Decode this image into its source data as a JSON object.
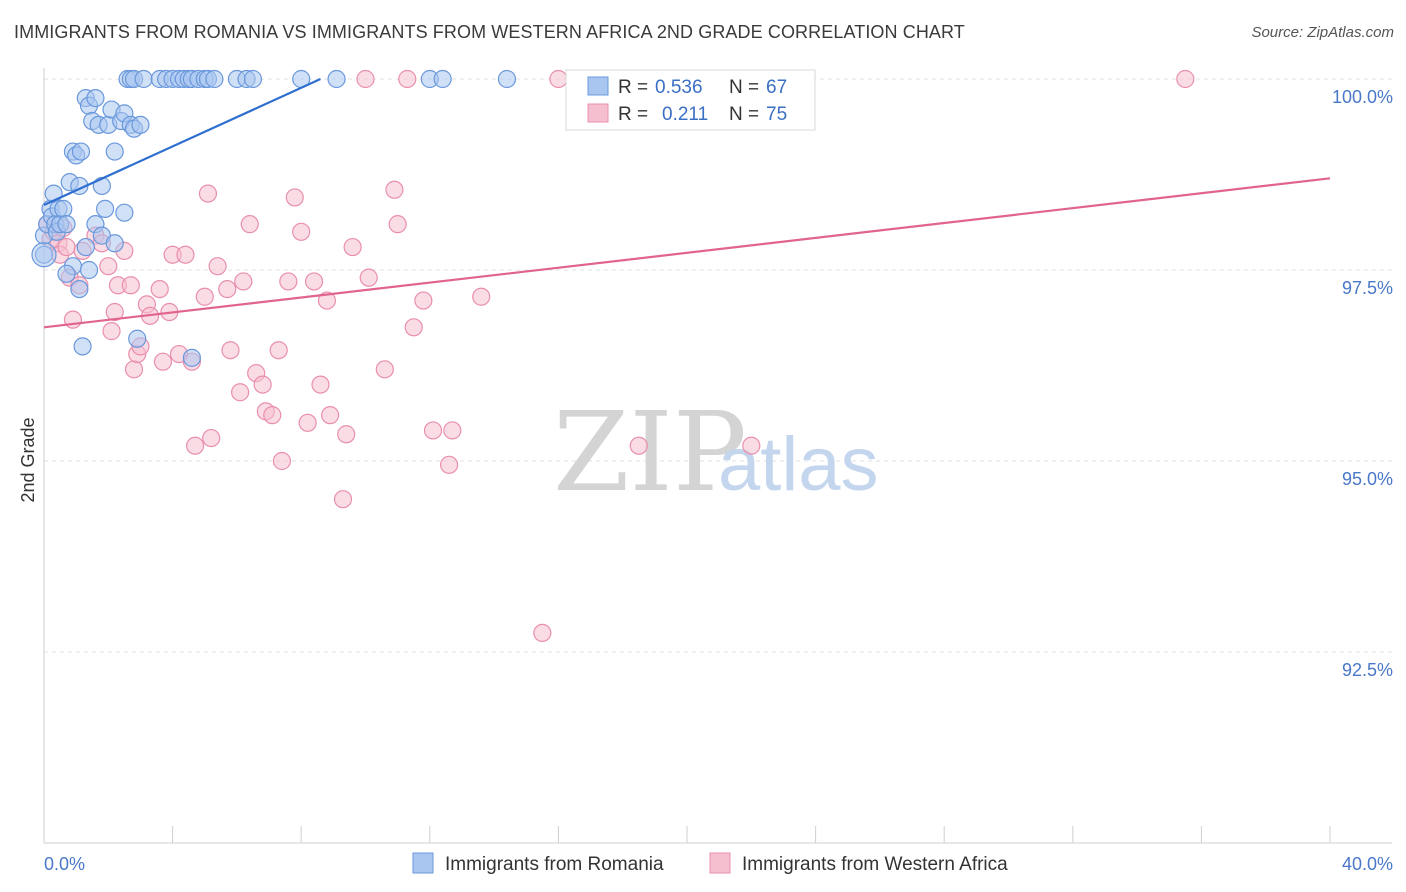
{
  "title": "IMMIGRANTS FROM ROMANIA VS IMMIGRANTS FROM WESTERN AFRICA 2ND GRADE CORRELATION CHART",
  "source": "Source: ZipAtlas.com",
  "colors": {
    "blue_fill": "#a9c6f0",
    "blue_stroke": "#6a98dc",
    "blue_line": "#2f6fcf",
    "pink_fill": "#f6bfd0",
    "pink_stroke": "#e98fae",
    "pink_line": "#e0648e",
    "tick_text": "#4a78c8",
    "grid": "#e2e2e2"
  },
  "legend": {
    "series": [
      {
        "r_label": "R =",
        "r_value": "0.536",
        "n_label": "N =",
        "n_value": "67"
      },
      {
        "r_label": "R =",
        "r_value": "0.211",
        "n_label": "N =",
        "n_value": "75"
      }
    ]
  },
  "watermark": {
    "zip": "ZIP",
    "atlas": "atlas"
  },
  "chart_data": {
    "type": "scatter",
    "title": "IMMIGRANTS FROM ROMANIA VS IMMIGRANTS FROM WESTERN AFRICA 2ND GRADE CORRELATION CHART",
    "xlabel": "",
    "ylabel": "2nd Grade",
    "xlim": [
      0,
      40
    ],
    "ylim": [
      90.0,
      100.5
    ],
    "x_tick_labels": [
      "0.0%",
      "40.0%"
    ],
    "y_ticks": [
      92.5,
      95.0,
      97.5,
      100.0
    ],
    "y_tick_labels": [
      "92.5%",
      "95.0%",
      "97.5%",
      "100.0%"
    ],
    "grid": true,
    "legend_position": "top-center",
    "series": [
      {
        "name": "Immigrants from Romania",
        "r": 0.536,
        "n": 67,
        "trend": {
          "x": [
            0.0,
            8.6
          ],
          "y": [
            98.35,
            100.0
          ]
        },
        "points": [
          [
            0.0,
            97.7
          ],
          [
            0.0,
            97.95
          ],
          [
            0.1,
            98.1
          ],
          [
            0.2,
            98.3
          ],
          [
            0.25,
            98.2
          ],
          [
            0.3,
            98.5
          ],
          [
            0.35,
            98.1
          ],
          [
            0.4,
            98.0
          ],
          [
            0.45,
            98.3
          ],
          [
            0.5,
            98.1
          ],
          [
            0.6,
            98.3
          ],
          [
            0.7,
            98.1
          ],
          [
            0.8,
            98.65
          ],
          [
            0.9,
            99.05
          ],
          [
            1.0,
            99.0
          ],
          [
            1.1,
            98.6
          ],
          [
            1.15,
            99.05
          ],
          [
            1.3,
            99.75
          ],
          [
            1.4,
            99.65
          ],
          [
            1.5,
            99.45
          ],
          [
            1.6,
            99.75
          ],
          [
            1.7,
            99.4
          ],
          [
            1.8,
            98.6
          ],
          [
            1.9,
            98.3
          ],
          [
            2.0,
            99.4
          ],
          [
            2.1,
            99.6
          ],
          [
            2.2,
            99.05
          ],
          [
            2.4,
            99.45
          ],
          [
            2.5,
            99.55
          ],
          [
            2.7,
            99.4
          ],
          [
            2.8,
            99.35
          ],
          [
            3.0,
            99.4
          ],
          [
            2.5,
            98.25
          ],
          [
            1.3,
            97.8
          ],
          [
            1.6,
            98.1
          ],
          [
            1.8,
            97.95
          ],
          [
            2.2,
            97.85
          ],
          [
            0.9,
            97.55
          ],
          [
            1.1,
            97.25
          ],
          [
            1.4,
            97.5
          ],
          [
            0.7,
            97.45
          ],
          [
            1.2,
            96.5
          ],
          [
            2.9,
            96.6
          ],
          [
            4.6,
            96.35
          ],
          [
            2.6,
            100.0
          ],
          [
            2.7,
            100.0
          ],
          [
            2.8,
            100.0
          ],
          [
            3.1,
            100.0
          ],
          [
            3.6,
            100.0
          ],
          [
            3.8,
            100.0
          ],
          [
            4.0,
            100.0
          ],
          [
            4.2,
            100.0
          ],
          [
            4.35,
            100.0
          ],
          [
            4.5,
            100.0
          ],
          [
            4.6,
            100.0
          ],
          [
            4.8,
            100.0
          ],
          [
            5.0,
            100.0
          ],
          [
            5.1,
            100.0
          ],
          [
            5.3,
            100.0
          ],
          [
            6.0,
            100.0
          ],
          [
            6.3,
            100.0
          ],
          [
            6.5,
            100.0
          ],
          [
            8.0,
            100.0
          ],
          [
            9.1,
            100.0
          ],
          [
            12.0,
            100.0
          ],
          [
            12.4,
            100.0
          ],
          [
            14.4,
            100.0
          ]
        ]
      },
      {
        "name": "Immigrants from Western Africa",
        "r": 0.211,
        "n": 75,
        "trend": {
          "x": [
            0.0,
            40.0
          ],
          "y": [
            96.75,
            98.7
          ]
        },
        "points": [
          [
            0.1,
            98.1
          ],
          [
            0.2,
            97.9
          ],
          [
            0.3,
            98.0
          ],
          [
            0.45,
            97.85
          ],
          [
            0.5,
            97.7
          ],
          [
            0.6,
            98.05
          ],
          [
            0.7,
            97.8
          ],
          [
            0.8,
            97.4
          ],
          [
            0.9,
            96.85
          ],
          [
            1.1,
            97.3
          ],
          [
            1.2,
            97.75
          ],
          [
            1.6,
            97.95
          ],
          [
            1.8,
            97.85
          ],
          [
            2.0,
            97.55
          ],
          [
            2.1,
            96.7
          ],
          [
            2.2,
            96.95
          ],
          [
            2.3,
            97.3
          ],
          [
            2.5,
            97.75
          ],
          [
            2.7,
            97.3
          ],
          [
            2.8,
            96.2
          ],
          [
            2.9,
            96.4
          ],
          [
            3.0,
            96.5
          ],
          [
            3.2,
            97.05
          ],
          [
            3.3,
            96.9
          ],
          [
            3.6,
            97.25
          ],
          [
            3.7,
            96.3
          ],
          [
            3.9,
            96.95
          ],
          [
            4.0,
            97.7
          ],
          [
            4.2,
            96.4
          ],
          [
            4.4,
            97.7
          ],
          [
            4.6,
            96.3
          ],
          [
            4.7,
            95.2
          ],
          [
            5.0,
            97.15
          ],
          [
            5.1,
            98.5
          ],
          [
            5.2,
            95.3
          ],
          [
            5.4,
            97.55
          ],
          [
            5.7,
            97.25
          ],
          [
            5.8,
            96.45
          ],
          [
            6.1,
            95.9
          ],
          [
            6.2,
            97.35
          ],
          [
            6.4,
            98.1
          ],
          [
            6.6,
            96.15
          ],
          [
            6.8,
            96.0
          ],
          [
            6.9,
            95.65
          ],
          [
            7.1,
            95.6
          ],
          [
            7.3,
            96.45
          ],
          [
            7.4,
            95.0
          ],
          [
            7.6,
            97.35
          ],
          [
            7.8,
            98.45
          ],
          [
            8.0,
            98.0
          ],
          [
            8.2,
            95.5
          ],
          [
            8.4,
            97.35
          ],
          [
            8.6,
            96.0
          ],
          [
            8.8,
            97.1
          ],
          [
            8.9,
            95.6
          ],
          [
            9.3,
            94.5
          ],
          [
            9.4,
            95.35
          ],
          [
            9.6,
            97.8
          ],
          [
            10.1,
            97.4
          ],
          [
            10.6,
            96.2
          ],
          [
            10.9,
            98.55
          ],
          [
            11.0,
            98.1
          ],
          [
            11.5,
            96.75
          ],
          [
            11.8,
            97.1
          ],
          [
            12.1,
            95.4
          ],
          [
            12.6,
            94.95
          ],
          [
            12.7,
            95.4
          ],
          [
            13.6,
            97.15
          ],
          [
            15.5,
            92.75
          ],
          [
            18.5,
            95.2
          ],
          [
            22.0,
            95.2
          ],
          [
            10.0,
            100.0
          ],
          [
            11.3,
            100.0
          ],
          [
            16.0,
            100.0
          ],
          [
            35.5,
            100.0
          ]
        ]
      }
    ]
  }
}
